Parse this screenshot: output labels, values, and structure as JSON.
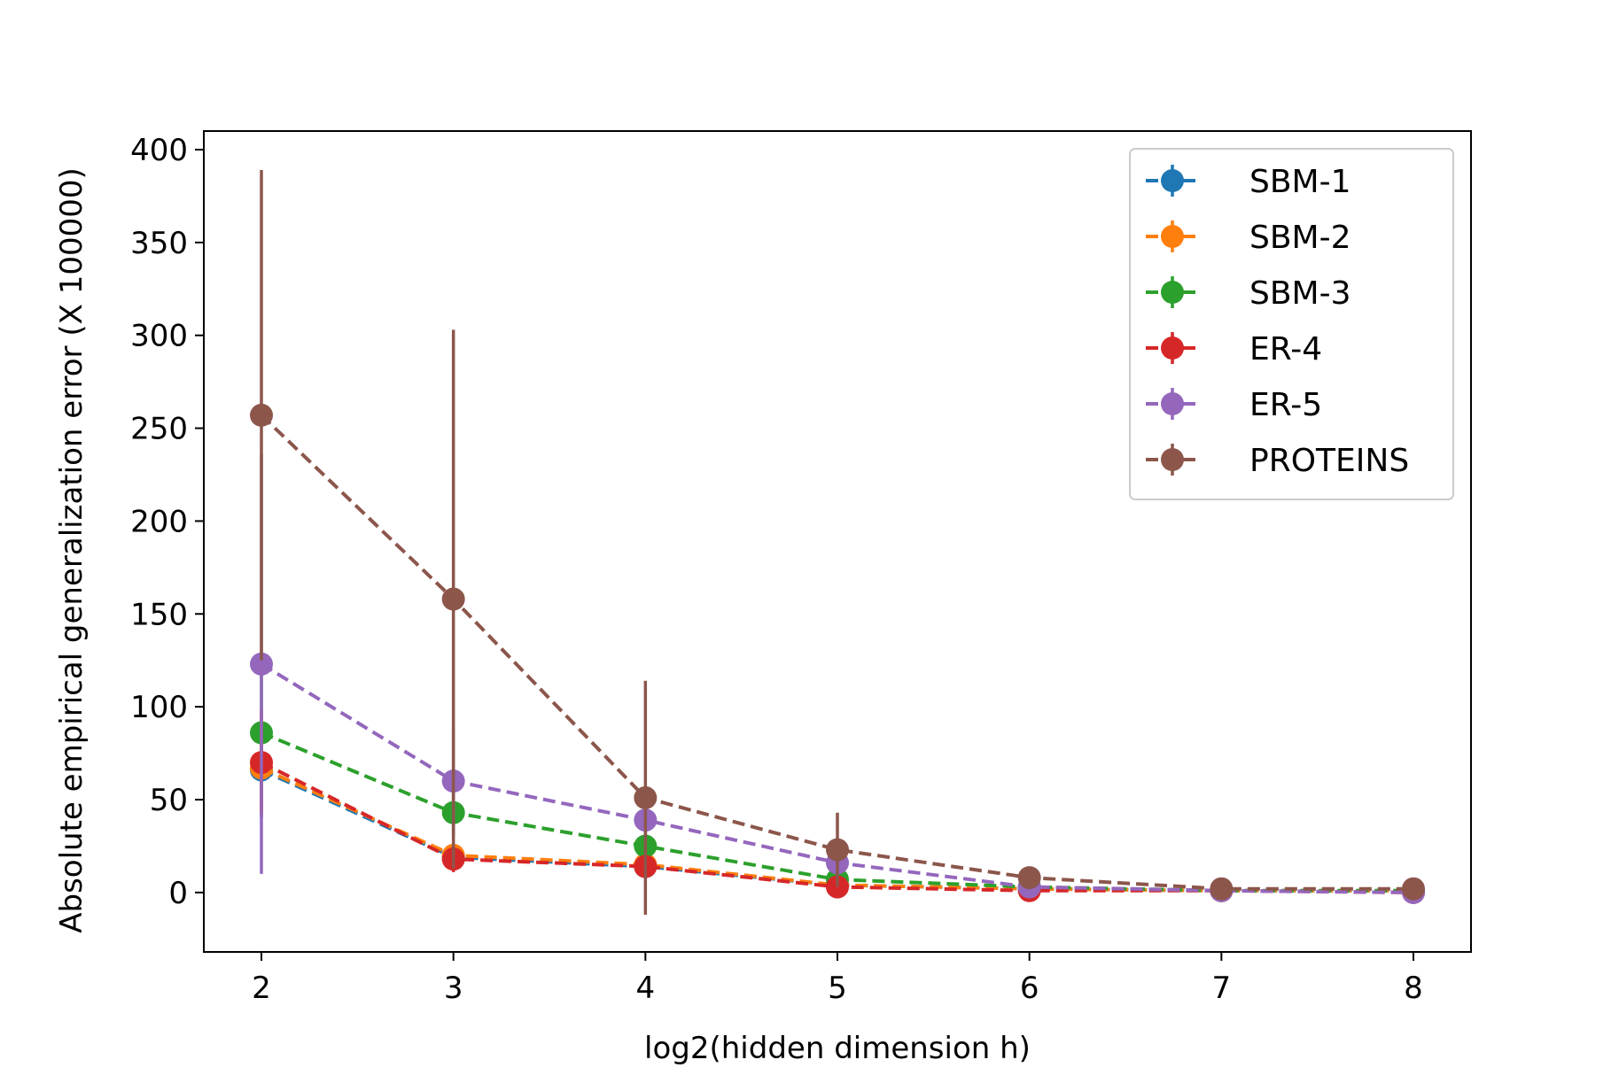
{
  "chart_data": {
    "type": "line",
    "title": "",
    "xlabel": "log2(hidden dimension h)",
    "ylabel": "Absolute empirical generalization error (X 100000)",
    "x": [
      2,
      3,
      4,
      5,
      6,
      7,
      8
    ],
    "xlim": [
      1.7,
      8.3
    ],
    "ylim": [
      -32,
      410
    ],
    "xticks": [
      2,
      3,
      4,
      5,
      6,
      7,
      8
    ],
    "yticks": [
      0,
      50,
      100,
      150,
      200,
      250,
      300,
      350,
      400
    ],
    "grid": false,
    "legend_position": "top-right",
    "series": [
      {
        "name": "SBM-1",
        "color": "#1f77b4",
        "values": [
          66,
          19,
          14,
          4,
          2,
          1,
          1
        ],
        "errors": [
          26,
          5,
          4,
          2,
          1,
          1,
          1
        ]
      },
      {
        "name": "SBM-2",
        "color": "#ff7f0e",
        "values": [
          67,
          20,
          15,
          4,
          2,
          1,
          1
        ],
        "errors": [
          25,
          6,
          4,
          2,
          1,
          1,
          1
        ]
      },
      {
        "name": "SBM-3",
        "color": "#2ca02c",
        "values": [
          86,
          43,
          25,
          7,
          3,
          1,
          1
        ],
        "errors": [
          37,
          13,
          9,
          3,
          1,
          1,
          1
        ]
      },
      {
        "name": "ER-4",
        "color": "#d62728",
        "values": [
          70,
          18,
          14,
          3,
          1,
          1,
          0
        ],
        "errors": [
          28,
          7,
          5,
          2,
          1,
          1,
          1
        ]
      },
      {
        "name": "ER-5",
        "color": "#9467bd",
        "values": [
          123,
          60,
          39,
          16,
          3,
          1,
          0
        ],
        "errors": [
          113,
          29,
          12,
          5,
          1,
          1,
          1
        ]
      },
      {
        "name": "PROTEINS",
        "color": "#8c564b",
        "values": [
          257,
          158,
          51,
          23,
          8,
          2,
          2
        ],
        "errors": [
          132,
          145,
          63,
          20,
          4,
          1,
          1
        ]
      }
    ]
  }
}
